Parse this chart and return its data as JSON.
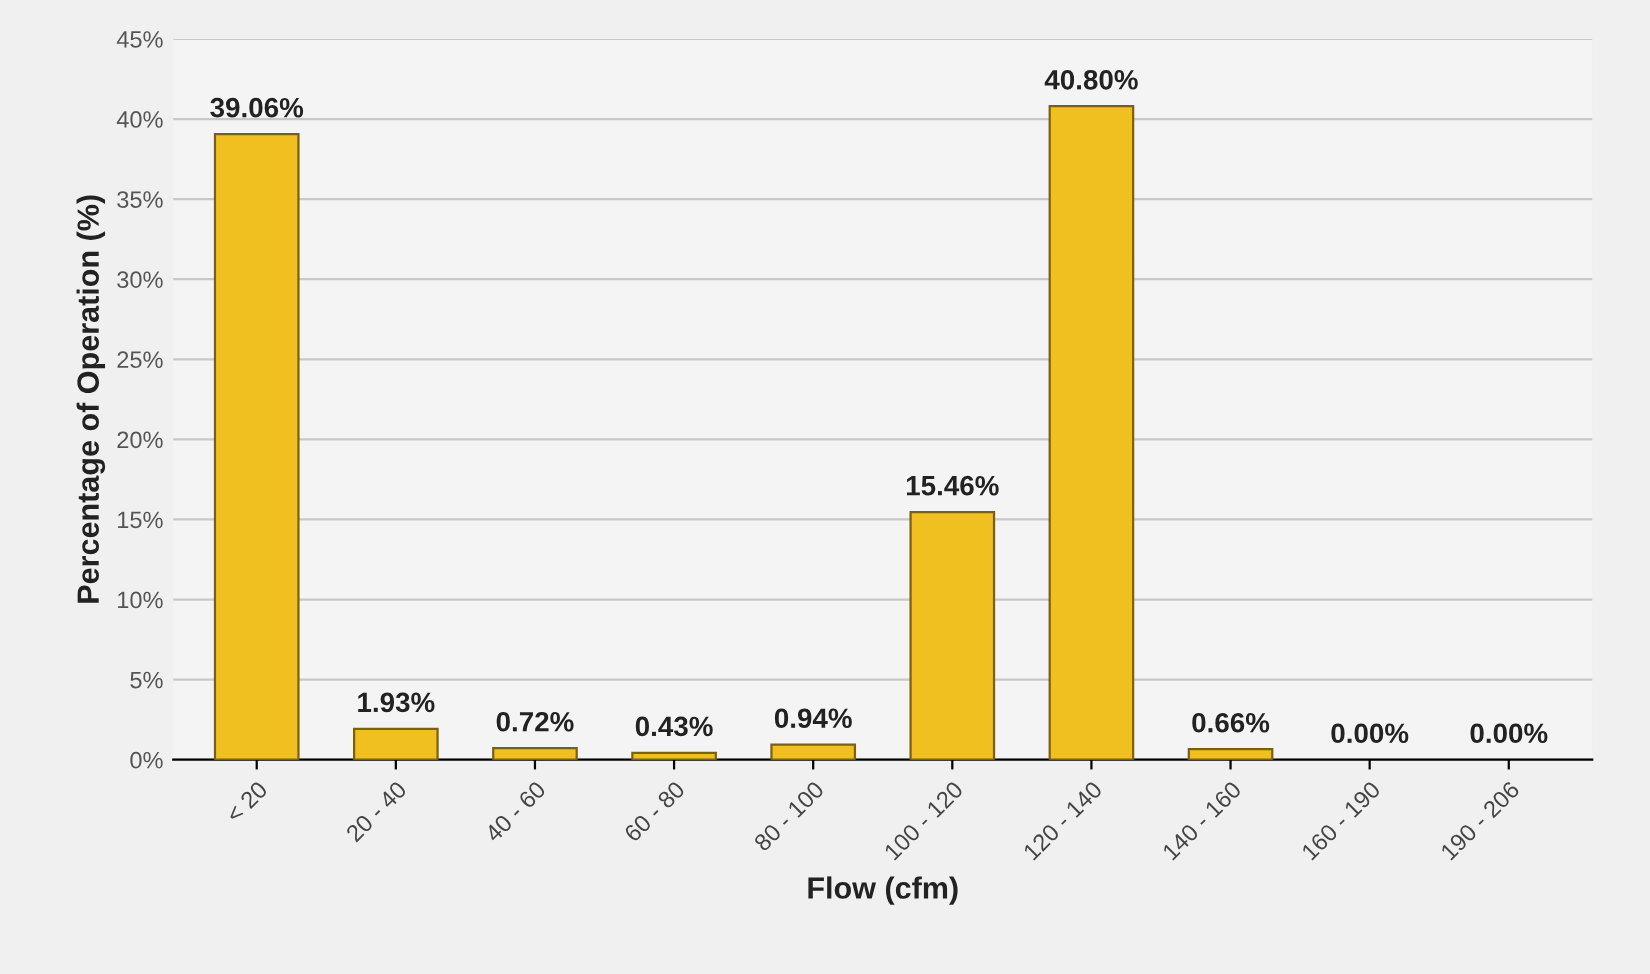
{
  "chart_data": {
    "type": "bar",
    "xlabel": "Flow (cfm)",
    "ylabel": "Percentage of Operation (%)",
    "categories": [
      "< 20",
      "20 - 40",
      "40 - 60",
      "60 - 80",
      "80 - 100",
      "100 - 120",
      "120 - 140",
      "140 - 160",
      "160 - 190",
      "190 - 206"
    ],
    "values": [
      39.06,
      1.93,
      0.72,
      0.43,
      0.94,
      15.46,
      40.8,
      0.66,
      0.0,
      0.0
    ],
    "value_labels": [
      "39.06%",
      "1.93%",
      "0.72%",
      "0.43%",
      "0.94%",
      "15.46%",
      "40.80%",
      "0.66%",
      "0.00%",
      "0.00%"
    ],
    "color": "#f0c020",
    "ylim": [
      0,
      45
    ],
    "yticks": [
      {
        "value": 0,
        "label": "0%"
      },
      {
        "value": 5,
        "label": "5%"
      },
      {
        "value": 10,
        "label": "10%"
      },
      {
        "value": 15,
        "label": "15%"
      },
      {
        "value": 20,
        "label": "20%"
      },
      {
        "value": 25,
        "label": "25%"
      },
      {
        "value": 30,
        "label": "30%"
      },
      {
        "value": 35,
        "label": "35%"
      },
      {
        "value": 40,
        "label": "40%"
      },
      {
        "value": 45,
        "label": "45%"
      }
    ],
    "grid": "y"
  }
}
